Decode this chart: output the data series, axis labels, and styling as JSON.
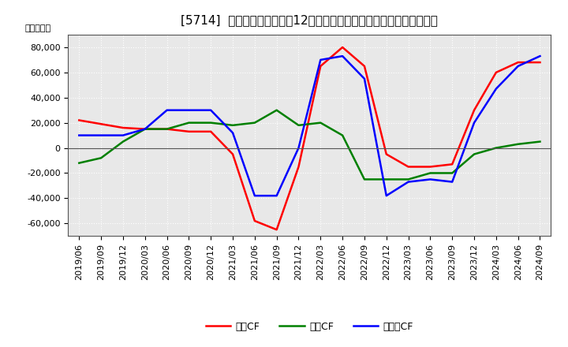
{
  "title": "[5714]  キャッシュフローの12か月移動合計の対前年同期増減額の推移",
  "ylabel": "（百万円）",
  "ylim": [
    -70000,
    90000
  ],
  "yticks": [
    -60000,
    -40000,
    -20000,
    0,
    20000,
    40000,
    60000,
    80000
  ],
  "x_labels": [
    "2019/06",
    "2019/09",
    "2019/12",
    "2020/03",
    "2020/06",
    "2020/09",
    "2020/12",
    "2021/03",
    "2021/06",
    "2021/09",
    "2021/12",
    "2022/03",
    "2022/06",
    "2022/09",
    "2022/12",
    "2023/03",
    "2023/06",
    "2023/09",
    "2023/12",
    "2024/03",
    "2024/06",
    "2024/09"
  ],
  "series": {
    "営業CF": [
      22000,
      19000,
      16000,
      15000,
      15000,
      13000,
      13000,
      -5000,
      -58000,
      -65000,
      -15000,
      65000,
      80000,
      65000,
      -5000,
      -15000,
      -15000,
      -13000,
      30000,
      60000,
      68000,
      68000
    ],
    "投資CF": [
      -12000,
      -8000,
      5000,
      15000,
      15000,
      20000,
      20000,
      18000,
      20000,
      30000,
      18000,
      20000,
      10000,
      -25000,
      -25000,
      -25000,
      -20000,
      -20000,
      -5000,
      0,
      3000,
      5000
    ],
    "フリーCF": [
      10000,
      10000,
      10000,
      15000,
      30000,
      30000,
      30000,
      12000,
      -38000,
      -38000,
      0,
      70000,
      73000,
      55000,
      -38000,
      -27000,
      -25000,
      -27000,
      20000,
      47000,
      65000,
      73000
    ]
  },
  "line_colors": {
    "営業CF": "#ff0000",
    "投資CF": "#008000",
    "フリーCF": "#0000ff"
  },
  "legend_labels": {
    "営業CF": "営業CF",
    "投資CF": "投資CF",
    "フリーCF": "フリーCF"
  },
  "background_color": "#ffffff",
  "plot_bg_color": "#e8e8e8",
  "grid_color": "#ffffff",
  "title_fontsize": 11,
  "legend_fontsize": 9,
  "tick_fontsize": 8
}
